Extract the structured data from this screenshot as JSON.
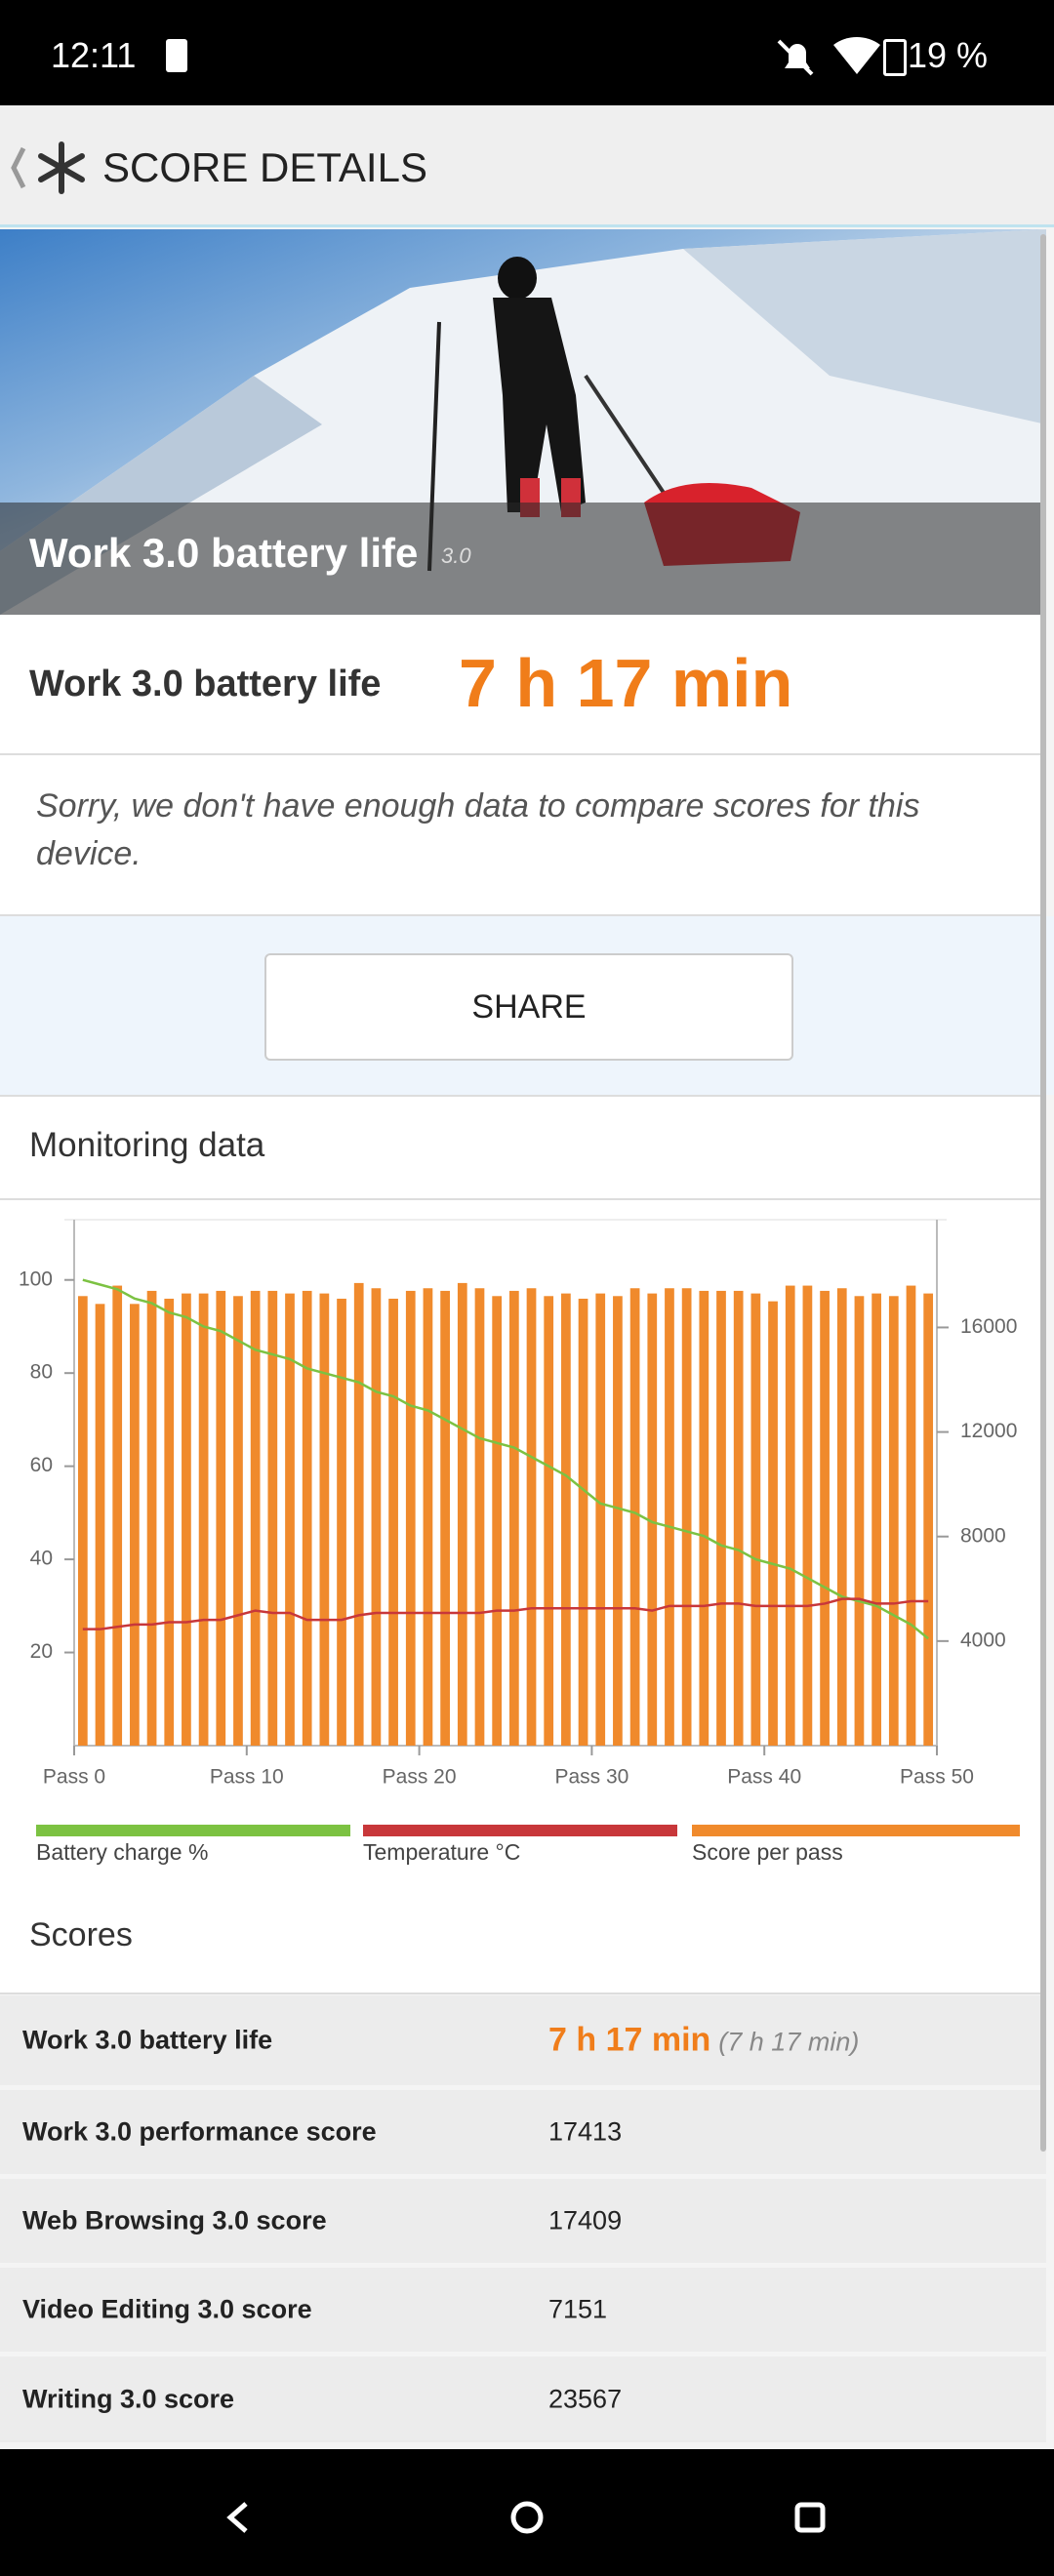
{
  "status": {
    "time": "12:11",
    "battery": "19 %"
  },
  "header": {
    "title": "SCORE DETAILS"
  },
  "hero": {
    "title": "Work 3.0 battery life",
    "version": "3.0"
  },
  "summary": {
    "label": "Work 3.0 battery life",
    "value": "7 h 17 min"
  },
  "note": "Sorry, we don't have enough data to compare scores for this device.",
  "share": "SHARE",
  "monitoring": {
    "title": "Monitoring data"
  },
  "chart_data": {
    "type": "combo",
    "x": [
      0,
      1,
      2,
      3,
      4,
      5,
      6,
      7,
      8,
      9,
      10,
      11,
      12,
      13,
      14,
      15,
      16,
      17,
      18,
      19,
      20,
      21,
      22,
      23,
      24,
      25,
      26,
      27,
      28,
      29,
      30,
      31,
      32,
      33,
      34,
      35,
      36,
      37,
      38,
      39,
      40,
      41,
      42,
      43,
      44,
      45,
      46,
      47,
      48,
      49
    ],
    "xlim": [
      0,
      50
    ],
    "xticks": [
      {
        "value": 0,
        "label": "Pass 0"
      },
      {
        "value": 10,
        "label": "Pass 10"
      },
      {
        "value": 20,
        "label": "Pass 20"
      },
      {
        "value": 30,
        "label": "Pass 30"
      },
      {
        "value": 40,
        "label": "Pass 40"
      },
      {
        "value": 50,
        "label": "Pass 50"
      }
    ],
    "ylim": [
      0,
      110
    ],
    "yticks": [
      20,
      40,
      60,
      80,
      100
    ],
    "y2lim": [
      0,
      19600
    ],
    "y2ticks": [
      4000,
      8000,
      12000,
      16000
    ],
    "series": [
      {
        "name": "Battery charge %",
        "color": "#7cc242",
        "chart_type": "line",
        "axis": "y",
        "values": [
          100,
          99,
          98,
          96,
          95,
          93,
          92,
          90,
          89,
          87,
          85,
          84,
          83,
          81,
          80,
          79,
          78,
          76,
          75,
          73,
          72,
          70,
          68,
          66,
          65,
          64,
          62,
          60,
          58,
          55,
          52,
          51,
          50,
          48,
          47,
          46,
          45,
          43,
          42,
          40,
          39,
          38,
          36,
          34,
          32,
          31,
          30,
          28,
          26,
          23
        ]
      },
      {
        "name": "Temperature °C",
        "color": "#c8373a",
        "chart_type": "line",
        "axis": "y",
        "values": [
          25,
          25,
          25.5,
          26,
          26,
          26.5,
          26.5,
          27,
          27,
          28,
          29,
          28.5,
          28.5,
          27,
          27,
          27,
          28,
          28.5,
          28.5,
          28.5,
          28.5,
          28.5,
          28.5,
          28.5,
          29,
          29,
          29.5,
          29.5,
          29.5,
          29.5,
          29.5,
          29.5,
          29.5,
          29,
          30,
          30,
          30,
          30.5,
          30.5,
          30,
          30,
          30,
          30,
          30.5,
          31.5,
          31.5,
          30.5,
          30.5,
          31,
          31
        ]
      },
      {
        "name": "Score per pass",
        "color": "#f08a2c",
        "chart_type": "bar",
        "axis": "y2",
        "values": [
          17200,
          16900,
          17600,
          16900,
          17400,
          17100,
          17300,
          17300,
          17400,
          17200,
          17400,
          17400,
          17300,
          17400,
          17300,
          17100,
          17700,
          17500,
          17100,
          17400,
          17500,
          17400,
          17700,
          17500,
          17200,
          17400,
          17500,
          17200,
          17300,
          17100,
          17300,
          17200,
          17500,
          17300,
          17500,
          17500,
          17400,
          17400,
          17400,
          17300,
          17000,
          17600,
          17600,
          17400,
          17500,
          17200,
          17300,
          17200,
          17600,
          17300
        ]
      }
    ]
  },
  "scores": {
    "title": "Scores",
    "rows": [
      {
        "label": "Work 3.0 battery life",
        "value": "7 h 17 min",
        "note": "(7 h 17 min)"
      },
      {
        "label": "Work 3.0 performance score",
        "value": "17413"
      },
      {
        "label": "Web Browsing 3.0 score",
        "value": "17409"
      },
      {
        "label": "Video Editing 3.0 score",
        "value": "7151"
      },
      {
        "label": "Writing 3.0 score",
        "value": "23567"
      }
    ]
  }
}
